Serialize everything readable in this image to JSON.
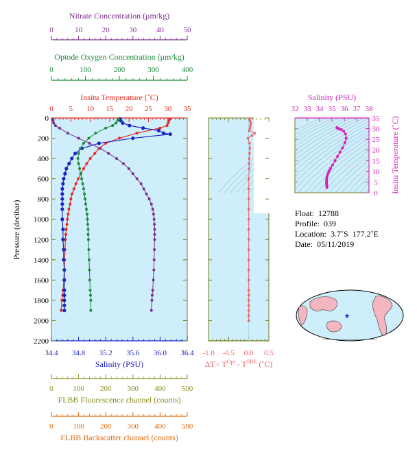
{
  "colors": {
    "nitrate": "#7b2d8e",
    "oxygen": "#1a8a3a",
    "temperature": "#e8261c",
    "salinity": "#1a22c8",
    "salinity_inset": "#d51fb8",
    "delta_t": "#f06060",
    "fluorescence": "#8a8a1f",
    "backscatter": "#e06a10",
    "plot_bg": "#cdeefa",
    "frame": "#7a7a1a"
  },
  "info": {
    "float": "Float:  12788",
    "profile": "Profile:  039",
    "location": "Location:  3.7˚S  177.2˚E",
    "date": "Date:  05/11/2019"
  },
  "chart_data": [
    {
      "type": "line",
      "ylabel": "Pressure (decibar)",
      "yticks": [
        0,
        200,
        400,
        600,
        800,
        1000,
        1200,
        1400,
        1600,
        1800,
        2000,
        2200
      ],
      "ylim": [
        0,
        2200
      ],
      "y_inverted": true,
      "grid": false,
      "axes": {
        "nitrate": {
          "title": "Nitrate Concentration (μm/kg)",
          "range": [
            0,
            50
          ],
          "ticks": [
            "0",
            "10",
            "20",
            "30",
            "40",
            "50"
          ]
        },
        "oxygen": {
          "title": "Optode Oxygen Concentration (μm/kg)",
          "range": [
            0,
            400
          ],
          "ticks": [
            "0",
            "100",
            "200",
            "300",
            "400"
          ]
        },
        "temperature": {
          "title": "Insitu Temperature (˚C)",
          "range": [
            0,
            35
          ],
          "ticks": [
            "0",
            "5",
            "10",
            "15",
            "20",
            "25",
            "30",
            "35"
          ]
        },
        "salinity": {
          "title": "Salinity (PSU)",
          "range": [
            34.4,
            36.4
          ],
          "ticks": [
            "34.4",
            "34.8",
            "35.2",
            "35.6",
            "36.0",
            "36.4"
          ]
        },
        "fluorescence": {
          "title": "FLBB Fluorescence channel (counts)",
          "range": [
            0,
            500
          ],
          "ticks": [
            "0",
            "100",
            "200",
            "300",
            "400",
            "500"
          ]
        },
        "backscatter": {
          "title": "FLBB Backscatter channel (counts)",
          "range": [
            0,
            500
          ],
          "ticks": [
            "0",
            "100",
            "200",
            "300",
            "400",
            "500"
          ]
        }
      },
      "series": [
        {
          "key": "temperature",
          "x": [
            30.5,
            30.3,
            30.1,
            29.8,
            28.0,
            22.0,
            17.5,
            14.0,
            12.3,
            11.2,
            10.0,
            9.1,
            8.3,
            7.6,
            6.9,
            6.3,
            5.8,
            5.3,
            5.0,
            4.8,
            4.5,
            4.3,
            4.1,
            4.0,
            3.8,
            3.7,
            3.6,
            3.5,
            3.4,
            3.3,
            3.2,
            3.0,
            2.9,
            2.7,
            2.5
          ],
          "y": [
            10,
            25,
            50,
            75,
            100,
            150,
            200,
            250,
            300,
            350,
            400,
            450,
            500,
            550,
            600,
            650,
            700,
            750,
            800,
            850,
            900,
            950,
            1000,
            1050,
            1100,
            1150,
            1200,
            1300,
            1400,
            1500,
            1600,
            1700,
            1750,
            1800,
            1900
          ]
        },
        {
          "key": "salinity",
          "x": [
            35.41,
            35.42,
            35.45,
            35.55,
            35.75,
            35.98,
            36.05,
            36.15,
            35.6,
            35.1,
            34.85,
            34.75,
            34.7,
            34.66,
            34.62,
            34.6,
            34.58,
            34.57,
            34.56,
            34.56,
            34.56,
            34.56,
            34.56,
            34.56,
            34.57,
            34.57,
            34.58,
            34.58,
            34.59,
            34.59,
            34.59,
            34.59,
            34.59,
            34.59,
            34.59
          ],
          "y": [
            10,
            25,
            50,
            75,
            100,
            125,
            150,
            160,
            200,
            250,
            300,
            350,
            400,
            450,
            500,
            550,
            600,
            650,
            700,
            750,
            800,
            850,
            900,
            1000,
            1100,
            1200,
            1300,
            1400,
            1500,
            1600,
            1700,
            1750,
            1800,
            1850,
            1900
          ]
        },
        {
          "key": "oxygen",
          "x": [
            198,
            195,
            190,
            180,
            160,
            130,
            110,
            95,
            85,
            80,
            78,
            80,
            83,
            86,
            89,
            92,
            95,
            97,
            99,
            101,
            103,
            105,
            106,
            107,
            108,
            108,
            109,
            110,
            111,
            112,
            113,
            114,
            115,
            116,
            116
          ],
          "y": [
            10,
            25,
            50,
            75,
            100,
            150,
            200,
            250,
            300,
            350,
            400,
            450,
            500,
            550,
            600,
            650,
            700,
            750,
            800,
            850,
            900,
            950,
            1000,
            1050,
            1100,
            1150,
            1200,
            1300,
            1400,
            1500,
            1600,
            1700,
            1750,
            1800,
            1900
          ]
        },
        {
          "key": "nitrate",
          "x": [
            0.5,
            0.6,
            0.8,
            1.5,
            3.0,
            6.0,
            10.0,
            14.0,
            18.0,
            21.0,
            24.0,
            26.5,
            28.5,
            30.0,
            31.5,
            33.0,
            34.0,
            35.0,
            36.0,
            36.8,
            37.3,
            37.6,
            37.8,
            37.9,
            38.0,
            38.0,
            38.0,
            37.9,
            37.8,
            37.7,
            37.5,
            37.3,
            37.1,
            37.0,
            36.8
          ],
          "y": [
            10,
            25,
            50,
            75,
            100,
            150,
            200,
            250,
            300,
            350,
            400,
            450,
            500,
            550,
            600,
            650,
            700,
            750,
            800,
            850,
            900,
            950,
            1000,
            1050,
            1100,
            1150,
            1200,
            1300,
            1400,
            1500,
            1600,
            1700,
            1750,
            1800,
            1900
          ]
        }
      ]
    },
    {
      "type": "line",
      "xlabel": "ΔT= T^Opt - T^SBE (˚C)",
      "xlim": [
        -1.0,
        0.5
      ],
      "xticks": [
        "-1.0",
        "-0.5",
        "0.0",
        "0.5"
      ],
      "ylim": [
        0,
        2200
      ],
      "series": [
        {
          "name": "ΔT",
          "x": [
            0.02,
            0.03,
            0.05,
            0.04,
            0.03,
            0.01,
            0.15,
            0.08,
            -0.02,
            0.02,
            0.03,
            0.02,
            0.01,
            0.01,
            0.01,
            0.0,
            0.0,
            0.0,
            0.0,
            0.0,
            0.0,
            0.0,
            0.0,
            0.0,
            0.0,
            0.0,
            0.0,
            0.0,
            0.0,
            0.0,
            0.0,
            0.0,
            0.0
          ],
          "y": [
            10,
            25,
            50,
            75,
            100,
            125,
            150,
            175,
            200,
            250,
            300,
            350,
            400,
            450,
            500,
            600,
            700,
            800,
            900,
            1000,
            1100,
            1200,
            1300,
            1400,
            1500,
            1600,
            1700,
            1750,
            1800,
            1850,
            1900,
            1950,
            2000
          ]
        }
      ]
    },
    {
      "type": "scatter",
      "xlabel_top": "Salinity (PSU)",
      "ylabel": "Insitu Temperature (˚C)",
      "xlim": [
        32,
        38
      ],
      "ylim": [
        0,
        35
      ],
      "xticks": [
        "32",
        "33",
        "34",
        "35",
        "36",
        "37",
        "38"
      ],
      "yticks": [
        "0",
        "5",
        "10",
        "15",
        "20",
        "25",
        "30",
        "35"
      ],
      "series": [
        {
          "name": "T-S",
          "x": [
            34.59,
            34.59,
            34.58,
            34.57,
            34.57,
            34.56,
            34.56,
            34.57,
            34.6,
            34.65,
            34.72,
            34.8,
            34.9,
            35.05,
            35.25,
            35.45,
            35.65,
            35.85,
            36.05,
            36.15,
            36.1,
            35.95,
            35.75,
            35.55,
            35.45,
            35.41,
            35.4
          ],
          "y": [
            2.5,
            3.0,
            3.5,
            4.0,
            4.5,
            5.0,
            5.5,
            6.5,
            7.5,
            8.5,
            9.5,
            10.5,
            11.5,
            13.0,
            15.0,
            17.0,
            19.0,
            21.0,
            23.5,
            25.5,
            27.5,
            28.8,
            29.6,
            30.0,
            30.2,
            30.4,
            30.5
          ]
        }
      ]
    }
  ]
}
